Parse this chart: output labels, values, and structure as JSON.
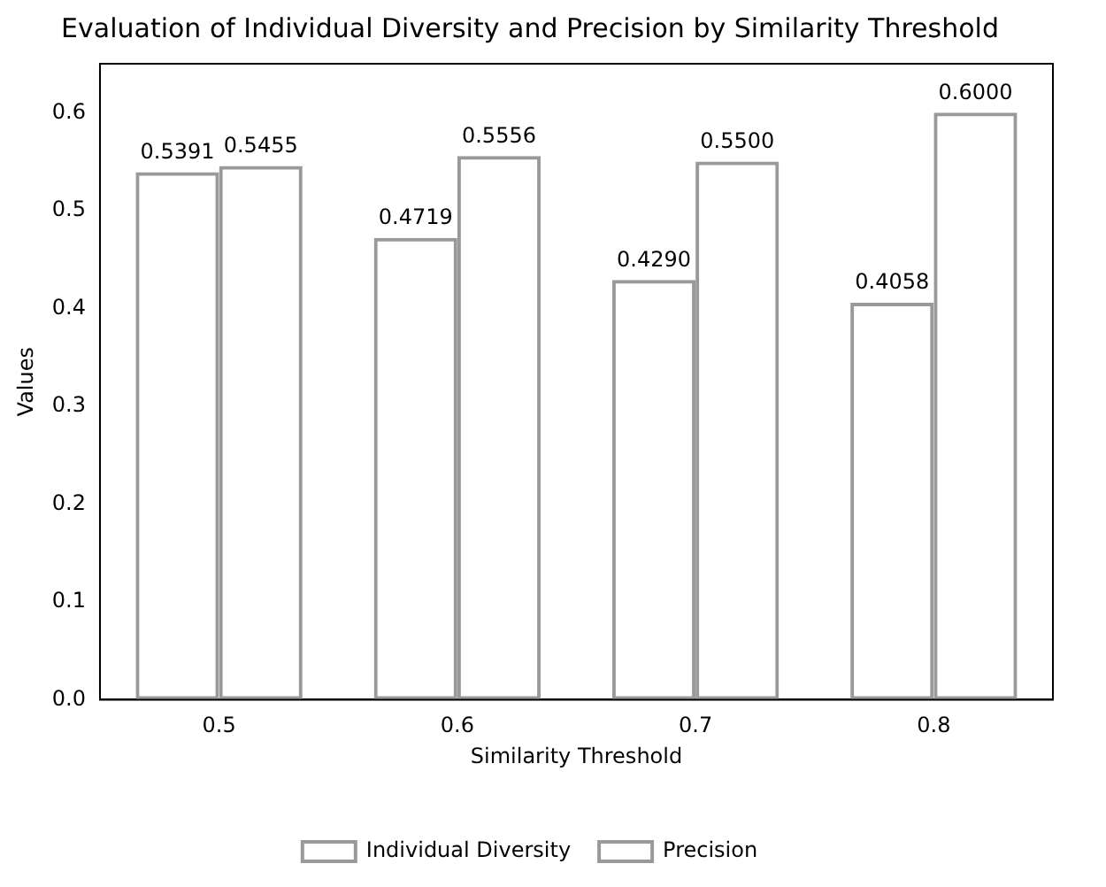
{
  "chart_data": {
    "type": "bar",
    "title": "Evaluation of Individual Diversity and Precision by Similarity Threshold",
    "xlabel": "Similarity Threshold",
    "ylabel": "Values",
    "categories": [
      "0.5",
      "0.6",
      "0.7",
      "0.8"
    ],
    "series": [
      {
        "name": "Individual Diversity",
        "color": "#999999",
        "values": [
          0.5391,
          0.4719,
          0.429,
          0.4058
        ],
        "value_labels": [
          "0.5391",
          "0.4719",
          "0.4290",
          "0.4058"
        ]
      },
      {
        "name": "Precision",
        "color": "#999999",
        "values": [
          0.5455,
          0.5556,
          0.55,
          0.6
        ],
        "value_labels": [
          "0.5455",
          "0.5556",
          "0.5500",
          "0.6000"
        ]
      }
    ],
    "ylim": [
      0,
      0.65
    ],
    "yticks": [
      {
        "value": 0,
        "label": "0.0"
      },
      {
        "value": 0.1,
        "label": "0.1"
      },
      {
        "value": 0.2,
        "label": "0.2"
      },
      {
        "value": 0.3,
        "label": "0.3"
      },
      {
        "value": 0.4,
        "label": "0.4"
      },
      {
        "value": 0.5,
        "label": "0.5"
      },
      {
        "value": 0.6,
        "label": "0.6"
      }
    ],
    "grid": false,
    "legend": "bottom"
  }
}
